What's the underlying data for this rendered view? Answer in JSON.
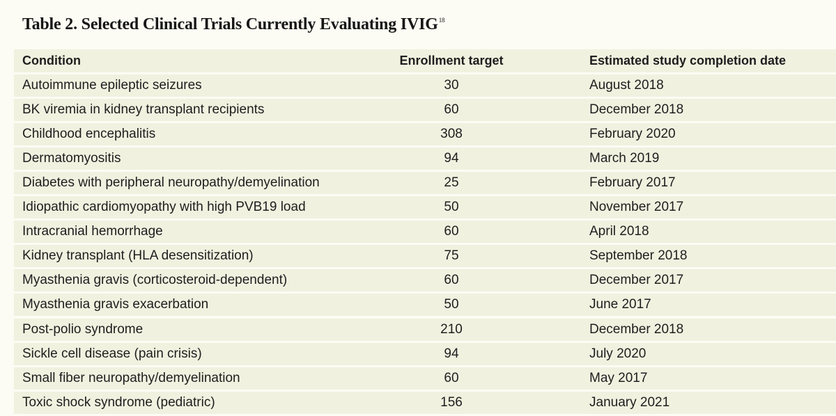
{
  "title": {
    "text": "Table 2. Selected Clinical Trials Currently Evaluating IVIG",
    "superscript": "18"
  },
  "table": {
    "headers": {
      "condition": "Condition",
      "enrollment": "Enrollment target",
      "completion": "Estimated study completion date"
    },
    "rows": [
      {
        "condition": "Autoimmune epileptic seizures",
        "enrollment": "30",
        "completion": "August 2018"
      },
      {
        "condition": "BK viremia in kidney transplant recipients",
        "enrollment": "60",
        "completion": "December 2018"
      },
      {
        "condition": "Childhood encephalitis",
        "enrollment": "308",
        "completion": "February 2020"
      },
      {
        "condition": "Dermatomyositis",
        "enrollment": "94",
        "completion": "March 2019"
      },
      {
        "condition": "Diabetes with peripheral neuropathy/demyelination",
        "enrollment": "25",
        "completion": "February 2017"
      },
      {
        "condition": "Idiopathic cardiomyopathy with high PVB19 load",
        "enrollment": "50",
        "completion": "November 2017"
      },
      {
        "condition": "Intracranial hemorrhage",
        "enrollment": "60",
        "completion": "April 2018"
      },
      {
        "condition": "Kidney transplant (HLA desensitization)",
        "enrollment": "75",
        "completion": "September 2018"
      },
      {
        "condition": "Myasthenia gravis (corticosteroid-dependent)",
        "enrollment": "60",
        "completion": "December 2017"
      },
      {
        "condition": "Myasthenia gravis exacerbation",
        "enrollment": "50",
        "completion": "June 2017"
      },
      {
        "condition": "Post-polio syndrome",
        "enrollment": "210",
        "completion": "December 2018"
      },
      {
        "condition": "Sickle cell disease (pain crisis)",
        "enrollment": "94",
        "completion": "July 2020"
      },
      {
        "condition": "Small fiber neuropathy/demyelination",
        "enrollment": "60",
        "completion": "May 2017"
      },
      {
        "condition": "Toxic shock syndrome (pediatric)",
        "enrollment": "156",
        "completion": "January 2021"
      }
    ]
  }
}
